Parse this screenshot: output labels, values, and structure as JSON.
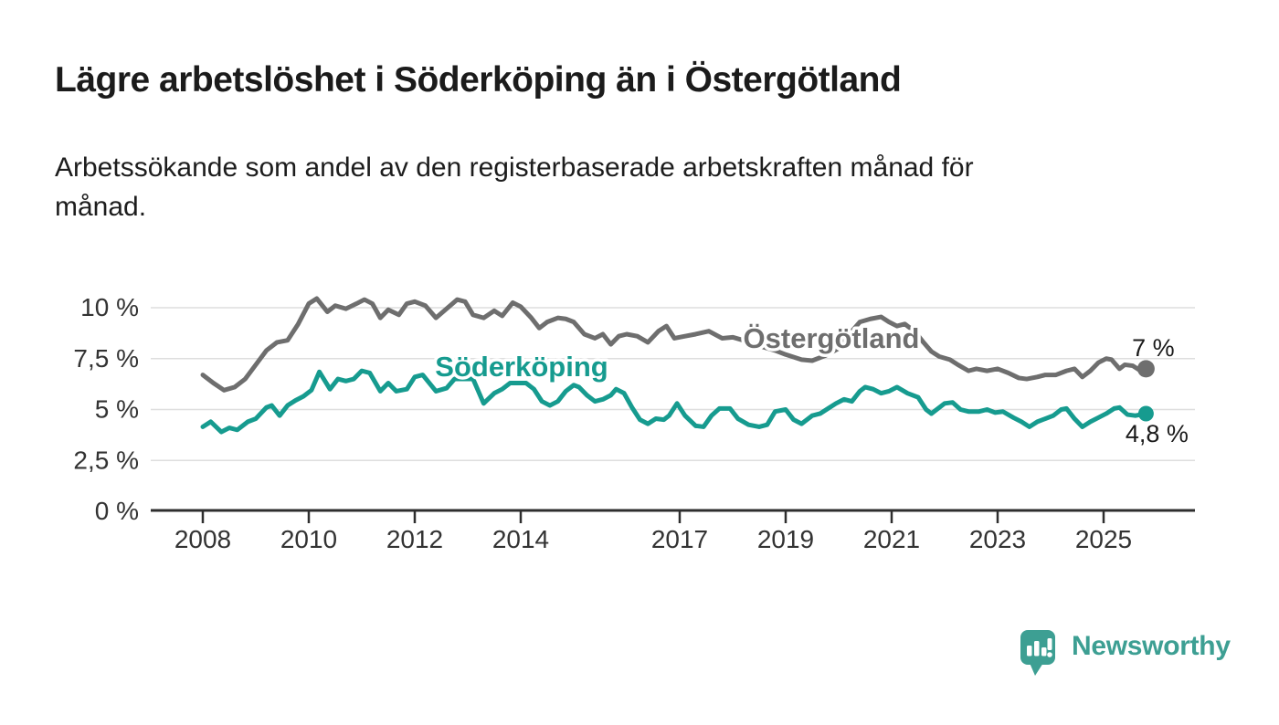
{
  "header": {
    "title": "Lägre arbetslöshet i Söderköping än i Östergötland",
    "subtitle": "Arbetssökande som andel av den registerbaserade arbetskraften månad för\nmånad."
  },
  "footer": {
    "brand": "Newsworthy"
  },
  "colors": {
    "background": "#ffffff",
    "title_text": "#1b1b1b",
    "tick_text": "#333333",
    "axis": "#2e2e2e",
    "gridline": "#dedede",
    "ostergotland": "#6E6E6E",
    "soderkoping": "#169B8F",
    "end_label_text": "#1a1a1a",
    "logo_teal": "#3D9F93"
  },
  "chart_data": {
    "type": "line",
    "title": "Lägre arbetslöshet i Söderköping än i Östergötland",
    "subtitle": "Arbetssökande som andel av den registerbaserade arbetskraften månad för månad.",
    "unit": "%",
    "grid": "horizontal",
    "legend_position": "inline-labels",
    "x_axis": {
      "start": 2008,
      "ticks": [
        2008,
        2010,
        2012,
        2014,
        2017,
        2019,
        2021,
        2023,
        2025
      ],
      "tick_labels": [
        "2008",
        "2010",
        "2012",
        "2014",
        "2017",
        "2019",
        "2021",
        "2023",
        "2025"
      ]
    },
    "y_axis": {
      "range": [
        0,
        11.2
      ],
      "ticks": [
        0,
        2.5,
        5,
        7.5,
        10
      ],
      "tick_labels": [
        "0 %",
        "2,5 %",
        "5 %",
        "7,5 %",
        "10 %"
      ]
    },
    "series": [
      {
        "name": "Östergötland",
        "color": "#6E6E6E",
        "end_label": "7 %",
        "end_value": 7.0,
        "points": [
          [
            2008.0,
            6.7
          ],
          [
            2008.2,
            6.3
          ],
          [
            2008.4,
            5.95
          ],
          [
            2008.6,
            6.1
          ],
          [
            2008.8,
            6.5
          ],
          [
            2009.0,
            7.2
          ],
          [
            2009.2,
            7.9
          ],
          [
            2009.4,
            8.3
          ],
          [
            2009.6,
            8.4
          ],
          [
            2009.8,
            9.2
          ],
          [
            2010.0,
            10.2
          ],
          [
            2010.15,
            10.45
          ],
          [
            2010.35,
            9.8
          ],
          [
            2010.5,
            10.1
          ],
          [
            2010.7,
            9.95
          ],
          [
            2010.9,
            10.2
          ],
          [
            2011.05,
            10.4
          ],
          [
            2011.2,
            10.2
          ],
          [
            2011.35,
            9.5
          ],
          [
            2011.5,
            9.9
          ],
          [
            2011.7,
            9.65
          ],
          [
            2011.85,
            10.2
          ],
          [
            2012.0,
            10.3
          ],
          [
            2012.2,
            10.1
          ],
          [
            2012.4,
            9.5
          ],
          [
            2012.6,
            9.95
          ],
          [
            2012.8,
            10.4
          ],
          [
            2012.95,
            10.3
          ],
          [
            2013.1,
            9.65
          ],
          [
            2013.3,
            9.5
          ],
          [
            2013.5,
            9.85
          ],
          [
            2013.65,
            9.6
          ],
          [
            2013.85,
            10.25
          ],
          [
            2014.0,
            10.05
          ],
          [
            2014.2,
            9.5
          ],
          [
            2014.35,
            9.0
          ],
          [
            2014.5,
            9.3
          ],
          [
            2014.7,
            9.5
          ],
          [
            2014.85,
            9.45
          ],
          [
            2015.0,
            9.3
          ],
          [
            2015.2,
            8.7
          ],
          [
            2015.4,
            8.5
          ],
          [
            2015.55,
            8.7
          ],
          [
            2015.7,
            8.2
          ],
          [
            2015.85,
            8.6
          ],
          [
            2016.0,
            8.7
          ],
          [
            2016.2,
            8.6
          ],
          [
            2016.4,
            8.3
          ],
          [
            2016.6,
            8.85
          ],
          [
            2016.75,
            9.1
          ],
          [
            2016.9,
            8.5
          ],
          [
            2017.1,
            8.6
          ],
          [
            2017.3,
            8.7
          ],
          [
            2017.55,
            8.85
          ],
          [
            2017.8,
            8.5
          ],
          [
            2018.0,
            8.55
          ],
          [
            2018.2,
            8.4
          ],
          [
            2018.4,
            8.2
          ],
          [
            2018.6,
            8.05
          ],
          [
            2018.8,
            7.9
          ],
          [
            2019.0,
            7.7
          ],
          [
            2019.3,
            7.45
          ],
          [
            2019.5,
            7.4
          ],
          [
            2019.75,
            7.65
          ],
          [
            2020.0,
            8.0
          ],
          [
            2020.2,
            8.7
          ],
          [
            2020.4,
            9.3
          ],
          [
            2020.6,
            9.45
          ],
          [
            2020.8,
            9.55
          ],
          [
            2020.95,
            9.3
          ],
          [
            2021.1,
            9.1
          ],
          [
            2021.25,
            9.2
          ],
          [
            2021.45,
            8.8
          ],
          [
            2021.6,
            8.3
          ],
          [
            2021.75,
            7.85
          ],
          [
            2021.9,
            7.6
          ],
          [
            2022.1,
            7.45
          ],
          [
            2022.25,
            7.2
          ],
          [
            2022.45,
            6.9
          ],
          [
            2022.6,
            7.0
          ],
          [
            2022.8,
            6.9
          ],
          [
            2023.0,
            7.0
          ],
          [
            2023.2,
            6.8
          ],
          [
            2023.4,
            6.55
          ],
          [
            2023.55,
            6.5
          ],
          [
            2023.75,
            6.6
          ],
          [
            2023.9,
            6.7
          ],
          [
            2024.1,
            6.7
          ],
          [
            2024.3,
            6.9
          ],
          [
            2024.45,
            7.0
          ],
          [
            2024.6,
            6.6
          ],
          [
            2024.75,
            6.9
          ],
          [
            2024.9,
            7.3
          ],
          [
            2025.05,
            7.5
          ],
          [
            2025.15,
            7.45
          ],
          [
            2025.3,
            7.0
          ],
          [
            2025.4,
            7.2
          ],
          [
            2025.55,
            7.15
          ],
          [
            2025.7,
            6.9
          ],
          [
            2025.8,
            7.0
          ]
        ]
      },
      {
        "name": "Söderköping",
        "color": "#169B8F",
        "end_label": "4,8 %",
        "end_value": 4.8,
        "points": [
          [
            2008.0,
            4.15
          ],
          [
            2008.15,
            4.4
          ],
          [
            2008.35,
            3.9
          ],
          [
            2008.5,
            4.1
          ],
          [
            2008.65,
            4.0
          ],
          [
            2008.85,
            4.4
          ],
          [
            2009.0,
            4.55
          ],
          [
            2009.2,
            5.1
          ],
          [
            2009.3,
            5.2
          ],
          [
            2009.45,
            4.7
          ],
          [
            2009.6,
            5.2
          ],
          [
            2009.75,
            5.45
          ],
          [
            2009.9,
            5.65
          ],
          [
            2010.05,
            5.95
          ],
          [
            2010.2,
            6.85
          ],
          [
            2010.4,
            6.0
          ],
          [
            2010.55,
            6.5
          ],
          [
            2010.7,
            6.4
          ],
          [
            2010.85,
            6.5
          ],
          [
            2011.0,
            6.9
          ],
          [
            2011.15,
            6.8
          ],
          [
            2011.35,
            5.9
          ],
          [
            2011.5,
            6.3
          ],
          [
            2011.65,
            5.9
          ],
          [
            2011.85,
            6.0
          ],
          [
            2012.0,
            6.6
          ],
          [
            2012.15,
            6.7
          ],
          [
            2012.4,
            5.9
          ],
          [
            2012.6,
            6.05
          ],
          [
            2012.75,
            6.5
          ],
          [
            2012.9,
            6.5
          ],
          [
            2013.1,
            6.5
          ],
          [
            2013.3,
            5.3
          ],
          [
            2013.5,
            5.8
          ],
          [
            2013.65,
            6.0
          ],
          [
            2013.8,
            6.3
          ],
          [
            2013.95,
            6.3
          ],
          [
            2014.1,
            6.3
          ],
          [
            2014.25,
            6.0
          ],
          [
            2014.4,
            5.4
          ],
          [
            2014.55,
            5.2
          ],
          [
            2014.7,
            5.4
          ],
          [
            2014.85,
            5.9
          ],
          [
            2015.0,
            6.2
          ],
          [
            2015.1,
            6.1
          ],
          [
            2015.25,
            5.7
          ],
          [
            2015.4,
            5.4
          ],
          [
            2015.55,
            5.5
          ],
          [
            2015.7,
            5.7
          ],
          [
            2015.8,
            6.0
          ],
          [
            2015.95,
            5.8
          ],
          [
            2016.1,
            5.1
          ],
          [
            2016.25,
            4.5
          ],
          [
            2016.4,
            4.3
          ],
          [
            2016.55,
            4.55
          ],
          [
            2016.7,
            4.5
          ],
          [
            2016.8,
            4.7
          ],
          [
            2016.95,
            5.3
          ],
          [
            2017.1,
            4.7
          ],
          [
            2017.3,
            4.2
          ],
          [
            2017.45,
            4.15
          ],
          [
            2017.6,
            4.7
          ],
          [
            2017.75,
            5.05
          ],
          [
            2017.95,
            5.05
          ],
          [
            2018.1,
            4.55
          ],
          [
            2018.3,
            4.25
          ],
          [
            2018.5,
            4.15
          ],
          [
            2018.65,
            4.25
          ],
          [
            2018.8,
            4.9
          ],
          [
            2019.0,
            5.0
          ],
          [
            2019.15,
            4.5
          ],
          [
            2019.3,
            4.3
          ],
          [
            2019.5,
            4.7
          ],
          [
            2019.65,
            4.8
          ],
          [
            2019.8,
            5.05
          ],
          [
            2019.95,
            5.3
          ],
          [
            2020.1,
            5.5
          ],
          [
            2020.25,
            5.4
          ],
          [
            2020.4,
            5.9
          ],
          [
            2020.5,
            6.1
          ],
          [
            2020.65,
            6.0
          ],
          [
            2020.8,
            5.8
          ],
          [
            2020.95,
            5.9
          ],
          [
            2021.1,
            6.1
          ],
          [
            2021.3,
            5.8
          ],
          [
            2021.5,
            5.6
          ],
          [
            2021.65,
            5.0
          ],
          [
            2021.75,
            4.8
          ],
          [
            2021.85,
            5.0
          ],
          [
            2022.0,
            5.3
          ],
          [
            2022.15,
            5.35
          ],
          [
            2022.3,
            5.0
          ],
          [
            2022.45,
            4.9
          ],
          [
            2022.65,
            4.9
          ],
          [
            2022.8,
            5.0
          ],
          [
            2022.95,
            4.85
          ],
          [
            2023.1,
            4.9
          ],
          [
            2023.3,
            4.6
          ],
          [
            2023.45,
            4.4
          ],
          [
            2023.6,
            4.15
          ],
          [
            2023.75,
            4.4
          ],
          [
            2023.9,
            4.55
          ],
          [
            2024.05,
            4.7
          ],
          [
            2024.2,
            5.0
          ],
          [
            2024.3,
            5.05
          ],
          [
            2024.45,
            4.55
          ],
          [
            2024.6,
            4.15
          ],
          [
            2024.75,
            4.4
          ],
          [
            2024.9,
            4.6
          ],
          [
            2025.05,
            4.8
          ],
          [
            2025.2,
            5.05
          ],
          [
            2025.3,
            5.1
          ],
          [
            2025.45,
            4.75
          ],
          [
            2025.6,
            4.7
          ],
          [
            2025.8,
            4.8
          ]
        ]
      }
    ]
  }
}
